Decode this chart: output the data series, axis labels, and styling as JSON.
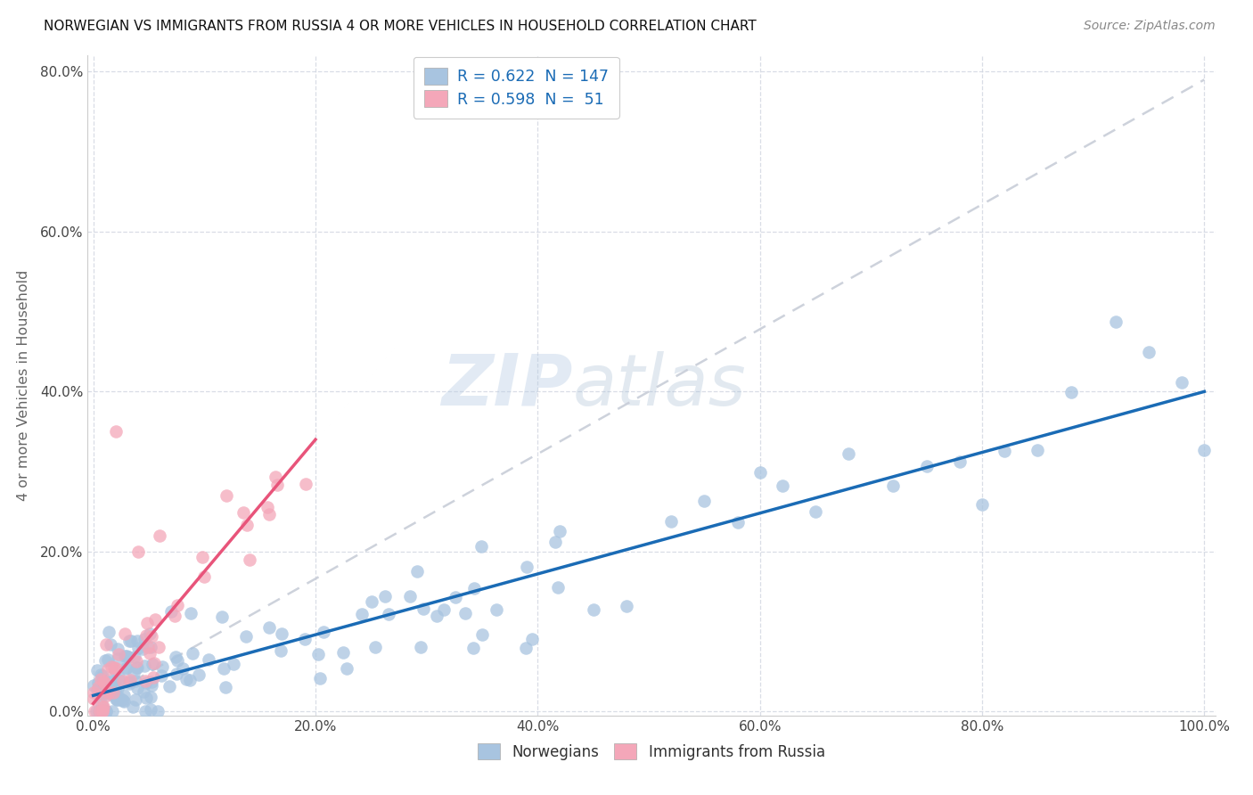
{
  "title": "NORWEGIAN VS IMMIGRANTS FROM RUSSIA 4 OR MORE VEHICLES IN HOUSEHOLD CORRELATION CHART",
  "source": "Source: ZipAtlas.com",
  "ylabel_label": "4 or more Vehicles in Household",
  "legend_norwegian": "Norwegians",
  "legend_russia": "Immigrants from Russia",
  "norwegian_R": "0.622",
  "norwegian_N": "147",
  "russia_R": "0.598",
  "russia_N": "51",
  "norwegian_color": "#a8c4e0",
  "russian_color": "#f4a7b9",
  "norwegian_line_color": "#1a6bb5",
  "russian_line_color": "#e8547a",
  "trend_line_color": "#c8cdd8",
  "watermark_zip": "ZIP",
  "watermark_atlas": "atlas",
  "norwegian_slope": 0.38,
  "norwegian_intercept": 0.02,
  "russian_slope": 1.65,
  "russian_intercept": 0.01,
  "dash_slope": 0.78,
  "dash_intercept": 0.01,
  "xlim": [
    0.0,
    1.0
  ],
  "ylim": [
    0.0,
    0.82
  ],
  "xticks": [
    0.0,
    0.2,
    0.4,
    0.6,
    0.8,
    1.0
  ],
  "yticks": [
    0.0,
    0.2,
    0.4,
    0.6,
    0.8
  ],
  "seed": 123
}
